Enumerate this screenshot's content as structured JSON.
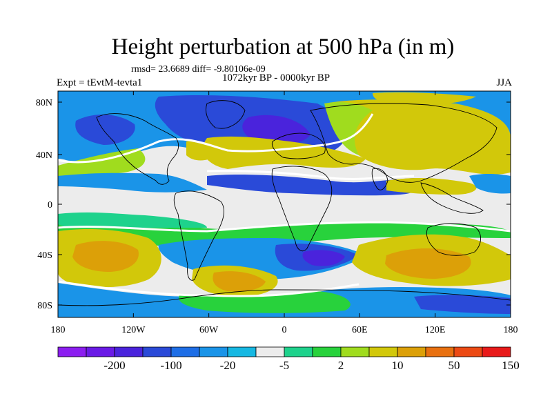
{
  "header": {
    "title": "Height perturbation at 500 hPa (in m)",
    "stats": "rmsd= 23.6689 diff= -9.80106e-09",
    "period": "1072kyr BP - 0000kyr BP",
    "experiment": "Expt = tEvtM-tevta1",
    "season": "JJA"
  },
  "axes": {
    "x_ticks": [
      "180",
      "120W",
      "60W",
      "0",
      "60E",
      "120E",
      "180"
    ],
    "y_ticks": [
      "80N",
      "40N",
      "0",
      "40S",
      "80S"
    ]
  },
  "colorbar": {
    "colors": [
      "#8c1ef0",
      "#6a1ae6",
      "#4a23dc",
      "#2a4ad8",
      "#1e6ee6",
      "#1a94e8",
      "#16b8e2",
      "#ececec",
      "#1ed28c",
      "#28d23c",
      "#a0dc1e",
      "#d2c80a",
      "#dca008",
      "#e87010",
      "#ec4a14",
      "#e81a1a"
    ],
    "labels": [
      "-200",
      "-100",
      "-20",
      "-5",
      "2",
      "10",
      "50",
      "150"
    ]
  },
  "palette": {
    "strong_neg": "#2a4ad8",
    "mid_neg": "#1a94e8",
    "weak_neg": "#16b8e2",
    "neutral": "#ececec",
    "weak_pos": "#1ed28c",
    "mid_pos": "#28d23c",
    "pos": "#a0dc1e",
    "strong_pos": "#d2c80a",
    "max_pos": "#dca008",
    "deep_neg": "#4a23dc"
  }
}
